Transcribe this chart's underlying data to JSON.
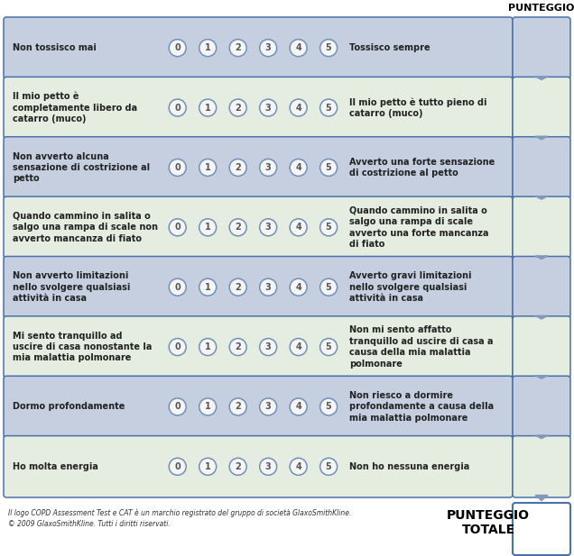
{
  "title": "PUNTEGGIO",
  "rows": [
    {
      "left": "Non tossisco mai",
      "right": "Tossisco sempre",
      "bg": "#c5cfe0",
      "score_bg": "#c5cfe0"
    },
    {
      "left": "Il mio petto è\ncompletamente libero da\ncatarro (muco)",
      "right": "Il mio petto è tutto pieno di\ncatarro (muco)",
      "bg": "#e4ede0",
      "score_bg": "#e4ede0"
    },
    {
      "left": "Non avverto alcuna\nsensazione di costrizione al\npetto",
      "right": "Avverto una forte sensazione\ndi costrizione al petto",
      "bg": "#c5cfe0",
      "score_bg": "#c5cfe0"
    },
    {
      "left": "Quando cammino in salita o\nsalgo una rampa di scale non\navverto mancanza di fiato",
      "right": "Quando cammino in salita o\nsalgo una rampa di scale\navverto una forte mancanza\ndi fiato",
      "bg": "#e4ede0",
      "score_bg": "#e4ede0"
    },
    {
      "left": "Non avverto limitazioni\nnello svolgere qualsiasi\nattività in casa",
      "right": "Avverto gravi limitazioni\nnello svolgere qualsiasi\nattività in casa",
      "bg": "#c5cfe0",
      "score_bg": "#c5cfe0"
    },
    {
      "left": "Mi sento tranquillo ad\nuscire di casa nonostante la\nmia malattia polmonare",
      "right": "Non mi sento affatto\ntranquillo ad uscire di casa a\ncausa della mia malattia\npolmonare",
      "bg": "#e4ede0",
      "score_bg": "#e4ede0"
    },
    {
      "left": "Dormo profondamente",
      "right": "Non riesco a dormire\nprofondamente a causa della\nmia malattia polmonare",
      "bg": "#c5cfe0",
      "score_bg": "#c5cfe0"
    },
    {
      "left": "Ho molta energia",
      "right": "Non ho nessuna energia",
      "bg": "#e4ede0",
      "score_bg": "#e4ede0"
    }
  ],
  "border_color": "#4a72a8",
  "circle_bg": "#f5f5f5",
  "circle_border": "#7090b8",
  "score_total_bg": "#ffffff",
  "arrow_color": "#8099bb",
  "footer_text": "Il logo COPD Assessment Test e CAT è un marchio registrato del gruppo di società GlaxoSmithKline.\n© 2009 GlaxoSmithKline. Tutti i diritti riservati.",
  "total_label": "PUNTEGGIO\nTOTALE",
  "numbers": [
    "0",
    "1",
    "2",
    "3",
    "4",
    "5"
  ],
  "title_fontsize": 8,
  "text_fontsize": 7,
  "num_fontsize": 7
}
